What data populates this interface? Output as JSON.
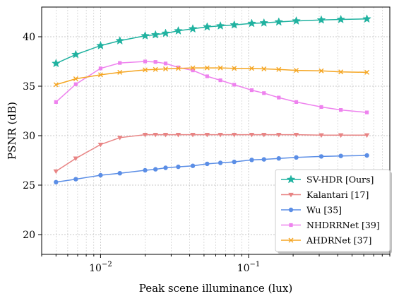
{
  "chart_data": {
    "type": "line",
    "title": "",
    "xlabel": "Peak scene illuminance (lux)",
    "ylabel": "PSNR (dB)",
    "xscale": "log",
    "xlim": [
      0.004,
      0.9
    ],
    "ylim": [
      18,
      43
    ],
    "yticks": [
      20,
      25,
      30,
      35,
      40
    ],
    "xticks": [
      {
        "value": 0.01,
        "base": "10",
        "exp": "−2"
      },
      {
        "value": 0.1,
        "base": "10",
        "exp": "−1"
      }
    ],
    "grid": true,
    "legend_position": "lower-right",
    "series": [
      {
        "name": "SV-HDR [Ours]",
        "color": "#20b2a0",
        "marker": "star",
        "x": [
          0.005,
          0.0068,
          0.01,
          0.0135,
          0.02,
          0.0235,
          0.0275,
          0.0335,
          0.042,
          0.0525,
          0.0645,
          0.08,
          0.105,
          0.127,
          0.16,
          0.21,
          0.31,
          0.42,
          0.63
        ],
        "y": [
          37.3,
          38.2,
          39.1,
          39.6,
          40.1,
          40.2,
          40.35,
          40.6,
          40.8,
          41.0,
          41.1,
          41.2,
          41.35,
          41.4,
          41.5,
          41.6,
          41.7,
          41.75,
          41.8
        ]
      },
      {
        "name": "Kalantari [17]",
        "color": "#e88484",
        "marker": "triangle-down",
        "x": [
          0.005,
          0.0068,
          0.01,
          0.0135,
          0.02,
          0.0235,
          0.0275,
          0.0335,
          0.042,
          0.0525,
          0.0645,
          0.08,
          0.105,
          0.127,
          0.16,
          0.21,
          0.31,
          0.42,
          0.63
        ],
        "y": [
          26.4,
          27.7,
          29.1,
          29.8,
          30.1,
          30.1,
          30.1,
          30.1,
          30.1,
          30.1,
          30.1,
          30.1,
          30.1,
          30.1,
          30.1,
          30.1,
          30.05,
          30.05,
          30.05
        ]
      },
      {
        "name": "Wu [35]",
        "color": "#5b8ee6",
        "marker": "circle",
        "x": [
          0.005,
          0.0068,
          0.01,
          0.0135,
          0.02,
          0.0235,
          0.0275,
          0.0335,
          0.042,
          0.0525,
          0.0645,
          0.08,
          0.105,
          0.127,
          0.16,
          0.21,
          0.31,
          0.42,
          0.63
        ],
        "y": [
          25.3,
          25.6,
          26.0,
          26.2,
          26.5,
          26.6,
          26.75,
          26.85,
          26.95,
          27.15,
          27.25,
          27.35,
          27.55,
          27.6,
          27.7,
          27.8,
          27.9,
          27.95,
          28.0
        ]
      },
      {
        "name": "NHDRRNet [39]",
        "color": "#ee82ee",
        "marker": "square",
        "x": [
          0.005,
          0.0068,
          0.01,
          0.0135,
          0.02,
          0.0235,
          0.0275,
          0.0335,
          0.042,
          0.0525,
          0.0645,
          0.08,
          0.105,
          0.127,
          0.16,
          0.21,
          0.31,
          0.42,
          0.63
        ],
        "y": [
          33.4,
          35.2,
          36.8,
          37.35,
          37.5,
          37.45,
          37.3,
          36.9,
          36.6,
          36.0,
          35.6,
          35.15,
          34.6,
          34.3,
          33.85,
          33.4,
          32.9,
          32.6,
          32.35
        ]
      },
      {
        "name": "AHDRNet [37]",
        "color": "#f5a623",
        "marker": "x",
        "x": [
          0.005,
          0.0068,
          0.01,
          0.0135,
          0.02,
          0.0235,
          0.0275,
          0.0335,
          0.042,
          0.0525,
          0.0645,
          0.08,
          0.105,
          0.127,
          0.16,
          0.21,
          0.31,
          0.42,
          0.63
        ],
        "y": [
          35.15,
          35.75,
          36.15,
          36.4,
          36.65,
          36.7,
          36.75,
          36.8,
          36.85,
          36.85,
          36.85,
          36.8,
          36.8,
          36.75,
          36.7,
          36.6,
          36.55,
          36.45,
          36.4
        ]
      }
    ]
  }
}
